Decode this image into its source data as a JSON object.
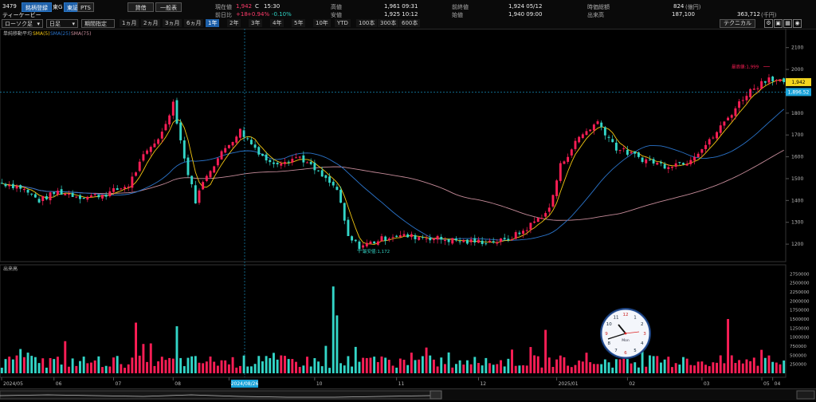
{
  "header": {
    "code": "3479",
    "name": "ティーケービー",
    "watch_button": "銘柄登録",
    "market": "東G",
    "venue_tse": "東証",
    "venue_pts": "PTS",
    "credit_button": "貸借",
    "general_button": "一般表",
    "price_label": "現在値",
    "price_value": "1,942",
    "price_c": "C",
    "price_time": "15:30",
    "change_label": "前日比",
    "change_value": "+18",
    "change_pct": "+0.94%",
    "change_alt": "-0.10%",
    "high_label": "高値",
    "high_value": "1,961 09:31",
    "low_label": "安値",
    "low_value": "1,925 10:12",
    "prev_label": "前終値",
    "prev_value": "1,924 05/12",
    "open_label": "始値",
    "open_value": "1,940 09:00",
    "mcap_label": "時価総額",
    "mcap_value": "824",
    "mcap_unit": "(億円)",
    "volume_label": "出来高",
    "volume_value": "187,100",
    "turnover_value": "363,712",
    "turnover_unit": "(千円)"
  },
  "toolbar": {
    "chart_type": "ローソク足",
    "interval": "日足",
    "range_mode": "期間指定",
    "ranges": [
      "1ヵ月",
      "2ヵ月",
      "3ヵ月",
      "6ヵ月",
      "1年",
      "2年",
      "3年",
      "4年",
      "5年",
      "10年",
      "YTD",
      "100本",
      "300本",
      "600本"
    ],
    "selected_range": "1年",
    "technical_button": "テクニカル"
  },
  "colors": {
    "up": "#ff1e56",
    "down": "#33d6c8",
    "sma5": "#f2c511",
    "sma25": "#2a73c9",
    "sma75": "#c58b99",
    "crosshair": "#1aa3d9",
    "price_tag": "#f3d51f"
  },
  "chart_data": {
    "type": "candlestick",
    "legend": {
      "title": "単純移動平均",
      "sma5": "SMA(5)",
      "sma25": "SMA(25)",
      "sma75": "SMA(75)"
    },
    "y_ticks": [
      1200,
      1300,
      1400,
      1500,
      1600,
      1700,
      1800,
      1900,
      2000,
      2100
    ],
    "ylim": [
      1120,
      2150
    ],
    "month_labels": [
      "2024/05",
      "06",
      "07",
      "08",
      "09",
      "10",
      "11",
      "12",
      "2025/01",
      "02",
      "03",
      "04",
      "05"
    ],
    "crosshair_date": "2024/08/26",
    "crosshair_price": "1,896.52",
    "current_price": "1,942",
    "max_label": "最高値:1,999",
    "min_label": "最安値:1,172",
    "anchors": [
      [
        0,
        1480
      ],
      [
        5,
        1460
      ],
      [
        10,
        1400
      ],
      [
        15,
        1440
      ],
      [
        22,
        1415
      ],
      [
        28,
        1430
      ],
      [
        34,
        1470
      ],
      [
        38,
        1600
      ],
      [
        43,
        1710
      ],
      [
        46,
        1850
      ],
      [
        49,
        1590
      ],
      [
        52,
        1400
      ],
      [
        55,
        1520
      ],
      [
        60,
        1640
      ],
      [
        64,
        1720
      ],
      [
        67,
        1660
      ],
      [
        72,
        1570
      ],
      [
        80,
        1600
      ],
      [
        86,
        1510
      ],
      [
        90,
        1450
      ],
      [
        93,
        1230
      ],
      [
        96,
        1190
      ],
      [
        105,
        1240
      ],
      [
        115,
        1230
      ],
      [
        125,
        1210
      ],
      [
        135,
        1215
      ],
      [
        140,
        1260
      ],
      [
        147,
        1360
      ],
      [
        150,
        1560
      ],
      [
        155,
        1690
      ],
      [
        160,
        1760
      ],
      [
        165,
        1640
      ],
      [
        172,
        1590
      ],
      [
        178,
        1560
      ],
      [
        184,
        1580
      ],
      [
        190,
        1670
      ],
      [
        195,
        1780
      ],
      [
        200,
        1890
      ],
      [
        206,
        1965
      ],
      [
        210,
        1942
      ]
    ],
    "volume": {
      "label": "出来高",
      "y_ticks": [
        250000,
        500000,
        750000,
        1000000,
        1250000,
        1500000,
        1750000,
        2000000,
        2250000,
        2500000,
        2750000
      ],
      "ylim": [
        0,
        2800000
      ],
      "spikes": [
        [
          36,
          1400000
        ],
        [
          47,
          1300000
        ],
        [
          89,
          2400000
        ],
        [
          90,
          1600000
        ],
        [
          146,
          1200000
        ],
        [
          195,
          1500000
        ]
      ]
    }
  },
  "clock": {
    "label": "Mon"
  }
}
